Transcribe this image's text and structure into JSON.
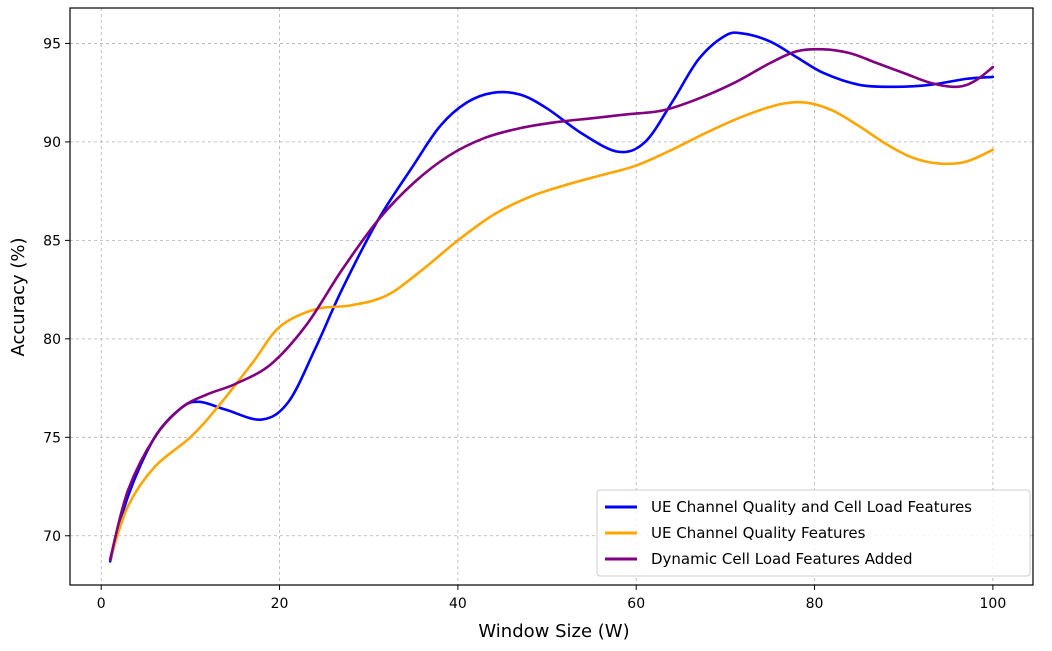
{
  "chart_data": {
    "type": "line",
    "title": "",
    "xlabel": "Window Size (W)",
    "ylabel": "Accuracy (%)",
    "xlim": [
      -3.5,
      104.5
    ],
    "ylim": [
      67.5,
      96.8
    ],
    "xticks": [
      0,
      20,
      40,
      60,
      80,
      100
    ],
    "yticks": [
      70,
      75,
      80,
      85,
      90,
      95
    ],
    "xtick_labels": [
      "0",
      "20",
      "40",
      "60",
      "80",
      "100"
    ],
    "ytick_labels": [
      "70",
      "75",
      "80",
      "85",
      "90",
      "95"
    ],
    "grid": true,
    "legend_position": "lower-right",
    "series": [
      {
        "name": "UE Channel Quality and Cell Load Features",
        "color": "#0000ff",
        "x": [
          1,
          3,
          6,
          9,
          11,
          14,
          18,
          21,
          24,
          27,
          31,
          35,
          38,
          41,
          44,
          47,
          50,
          54,
          58,
          61,
          64,
          67,
          70,
          72,
          75,
          78,
          81,
          85,
          89,
          93,
          97,
          100
        ],
        "y": [
          68.7,
          72.0,
          75.0,
          76.5,
          76.8,
          76.4,
          75.9,
          76.8,
          79.5,
          82.5,
          86.0,
          88.8,
          90.8,
          92.0,
          92.5,
          92.4,
          91.7,
          90.4,
          89.5,
          90.0,
          92.0,
          94.2,
          95.4,
          95.5,
          95.1,
          94.3,
          93.5,
          92.9,
          92.8,
          92.9,
          93.2,
          93.3
        ]
      },
      {
        "name": "UE Channel Quality Features",
        "color": "#ffa500",
        "x": [
          1,
          3,
          6,
          10,
          13,
          17,
          20,
          24,
          28,
          32,
          36,
          40,
          44,
          48,
          52,
          56,
          60,
          64,
          68,
          72,
          76,
          79,
          82,
          85,
          88,
          91,
          94,
          97,
          100
        ],
        "y": [
          68.8,
          71.5,
          73.5,
          75.0,
          76.5,
          78.8,
          80.6,
          81.5,
          81.7,
          82.2,
          83.5,
          85.0,
          86.3,
          87.2,
          87.8,
          88.3,
          88.8,
          89.6,
          90.5,
          91.3,
          91.9,
          92.0,
          91.6,
          90.8,
          89.9,
          89.2,
          88.9,
          89.0,
          89.6
        ]
      },
      {
        "name": "Dynamic Cell Load Features Added",
        "color": "#800080",
        "x": [
          1,
          3,
          6,
          9,
          12,
          15,
          19,
          23,
          27,
          31,
          35,
          39,
          43,
          47,
          51,
          55,
          59,
          63,
          67,
          71,
          75,
          78,
          81,
          84,
          87,
          90,
          93,
          96,
          98,
          100
        ],
        "y": [
          68.8,
          72.3,
          75.0,
          76.5,
          77.2,
          77.7,
          78.7,
          80.7,
          83.5,
          86.0,
          87.9,
          89.3,
          90.2,
          90.7,
          91.0,
          91.2,
          91.4,
          91.6,
          92.2,
          93.0,
          94.0,
          94.6,
          94.7,
          94.5,
          94.0,
          93.5,
          93.0,
          92.8,
          93.1,
          93.8
        ]
      }
    ]
  }
}
